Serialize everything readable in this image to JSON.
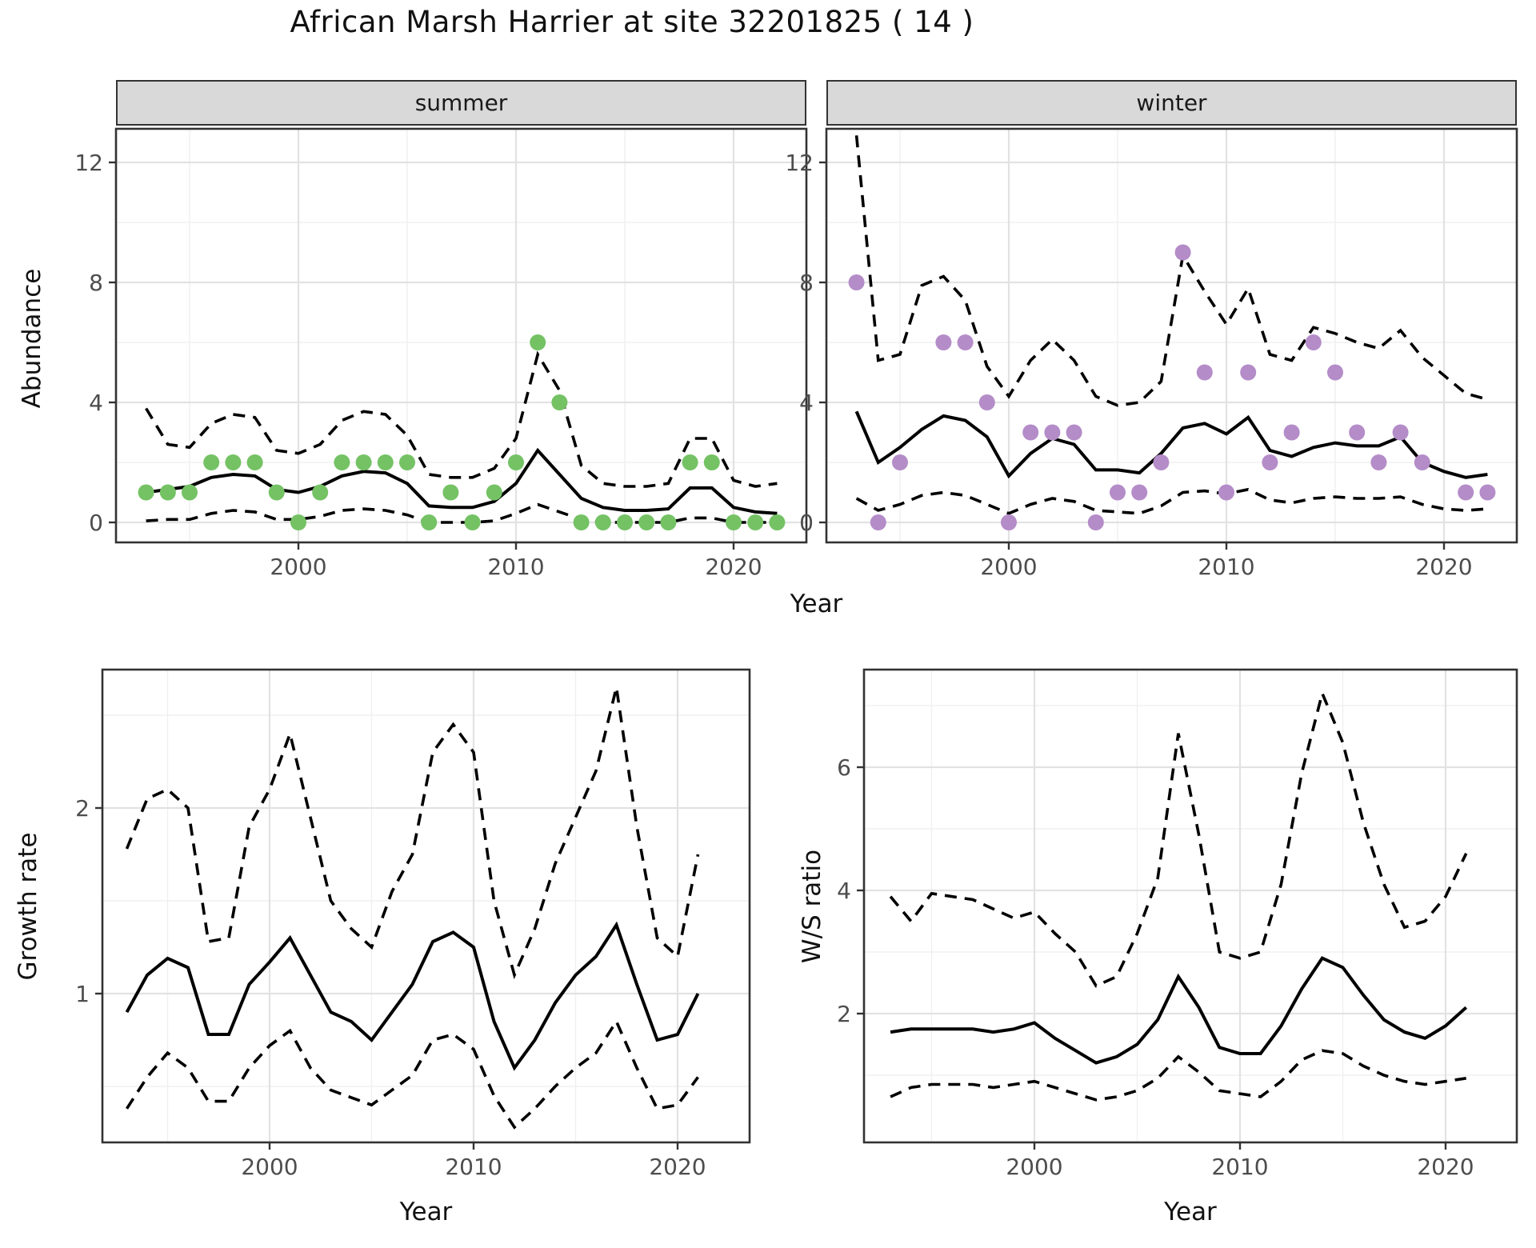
{
  "title": "African Marsh Harrier at site 32201825 ( 14 )",
  "axes": {
    "abundance_label": "Abundance",
    "year_label": "Year",
    "growth_label": "Growth rate",
    "ws_label": "W/S ratio"
  },
  "facets": {
    "summer": "summer",
    "winter": "winter"
  },
  "colors": {
    "summer_point": "#74c264",
    "winter_point": "#b48cc8",
    "mean_line": "#000000",
    "ci_line": "#000000",
    "strip_bg": "#d9d9d9",
    "grid_major": "#e2e2e2",
    "grid_minor": "#f0f0f0",
    "panel_border": "#333333",
    "tick_text": "#4d4d4d"
  },
  "chart_data": [
    {
      "key": "abundance_summer",
      "type": "line+scatter",
      "facet": "summer",
      "ylabel": "Abundance",
      "xlabel": "Year",
      "x_ticks": [
        2000,
        2010,
        2020
      ],
      "x_minor": [
        1995,
        2005,
        2015
      ],
      "y_ticks": [
        0,
        4,
        8,
        12
      ],
      "y_minor": [
        2,
        6,
        10
      ],
      "ylim": [
        -0.7,
        13.1
      ],
      "xlim": [
        1991.6,
        2023.3
      ],
      "years": [
        1993,
        1994,
        1995,
        1996,
        1997,
        1998,
        1999,
        2000,
        2001,
        2002,
        2003,
        2004,
        2005,
        2006,
        2007,
        2008,
        2009,
        2010,
        2011,
        2012,
        2013,
        2014,
        2015,
        2016,
        2017,
        2018,
        2019,
        2020,
        2021,
        2022
      ],
      "counts": [
        1,
        1,
        1,
        2,
        2,
        2,
        1,
        0,
        1,
        2,
        2,
        2,
        2,
        0,
        1,
        0,
        1,
        2,
        6,
        4,
        0,
        0,
        0,
        0,
        0,
        2,
        2,
        0,
        0,
        0
      ],
      "mean": [
        1.0,
        1.1,
        1.2,
        1.5,
        1.6,
        1.55,
        1.1,
        1.0,
        1.2,
        1.55,
        1.7,
        1.65,
        1.3,
        0.55,
        0.5,
        0.5,
        0.7,
        1.3,
        2.4,
        1.6,
        0.8,
        0.5,
        0.4,
        0.4,
        0.45,
        1.15,
        1.15,
        0.5,
        0.35,
        0.3
      ],
      "ci_lo": [
        0.05,
        0.1,
        0.1,
        0.3,
        0.4,
        0.35,
        0.1,
        0.1,
        0.2,
        0.4,
        0.45,
        0.4,
        0.25,
        0.0,
        0.0,
        0.0,
        0.05,
        0.3,
        0.6,
        0.35,
        0.1,
        0.0,
        0.0,
        0.0,
        0.0,
        0.15,
        0.15,
        0.0,
        0.0,
        0.0
      ],
      "ci_hi": [
        3.8,
        2.6,
        2.5,
        3.3,
        3.6,
        3.5,
        2.4,
        2.3,
        2.6,
        3.4,
        3.7,
        3.6,
        2.9,
        1.6,
        1.5,
        1.5,
        1.8,
        2.8,
        5.6,
        4.4,
        1.9,
        1.3,
        1.2,
        1.2,
        1.3,
        2.8,
        2.8,
        1.4,
        1.2,
        1.3
      ]
    },
    {
      "key": "abundance_winter",
      "type": "line+scatter",
      "facet": "winter",
      "ylabel": "Abundance",
      "xlabel": "Year",
      "x_ticks": [
        2000,
        2010,
        2020
      ],
      "x_minor": [
        1995,
        2005,
        2015
      ],
      "y_ticks": [
        0,
        4,
        8,
        12
      ],
      "y_minor": [
        2,
        6,
        10
      ],
      "ylim": [
        -0.7,
        13.1
      ],
      "xlim": [
        1991.6,
        2023.3
      ],
      "years": [
        1993,
        1994,
        1995,
        1996,
        1997,
        1998,
        1999,
        2000,
        2001,
        2002,
        2003,
        2004,
        2005,
        2006,
        2007,
        2008,
        2009,
        2010,
        2011,
        2012,
        2013,
        2014,
        2015,
        2016,
        2017,
        2018,
        2019,
        2020,
        2021,
        2022
      ],
      "counts": [
        8,
        0,
        2,
        null,
        6,
        6,
        4,
        0,
        3,
        3,
        3,
        0,
        1,
        1,
        2,
        9,
        5,
        1,
        5,
        2,
        3,
        6,
        5,
        3,
        2,
        3,
        2,
        null,
        1,
        1
      ],
      "mean": [
        3.7,
        2.0,
        2.5,
        3.1,
        3.55,
        3.4,
        2.85,
        1.55,
        2.3,
        2.8,
        2.6,
        1.75,
        1.75,
        1.65,
        2.3,
        3.15,
        3.3,
        2.95,
        3.5,
        2.4,
        2.2,
        2.5,
        2.65,
        2.55,
        2.55,
        2.85,
        2.0,
        1.7,
        1.5,
        1.6
      ],
      "ci_lo": [
        0.8,
        0.4,
        0.6,
        0.9,
        1.0,
        0.9,
        0.6,
        0.3,
        0.6,
        0.8,
        0.7,
        0.4,
        0.35,
        0.3,
        0.55,
        1.0,
        1.05,
        0.95,
        1.1,
        0.75,
        0.65,
        0.8,
        0.85,
        0.8,
        0.8,
        0.85,
        0.6,
        0.45,
        0.4,
        0.45
      ],
      "ci_hi": [
        12.9,
        5.4,
        5.6,
        7.9,
        8.2,
        7.4,
        5.2,
        4.2,
        5.4,
        6.1,
        5.4,
        4.2,
        3.9,
        4.0,
        4.7,
        8.9,
        7.7,
        6.6,
        7.8,
        5.6,
        5.4,
        6.5,
        6.3,
        6.0,
        5.8,
        6.4,
        5.5,
        4.9,
        4.3,
        4.1
      ]
    },
    {
      "key": "growth_rate",
      "type": "line",
      "ylabel": "Growth rate",
      "xlabel": "Year",
      "x_ticks": [
        2000,
        2010,
        2020
      ],
      "x_minor": [
        1995,
        2005,
        2015
      ],
      "y_ticks": [
        1,
        2
      ],
      "y_minor": [
        0.5,
        1.5,
        2.5
      ],
      "ylim": [
        0.2,
        2.75
      ],
      "xlim": [
        1991.8,
        2023.5
      ],
      "years": [
        1993,
        1994,
        1995,
        1996,
        1997,
        1998,
        1999,
        2000,
        2001,
        2002,
        2003,
        2004,
        2005,
        2006,
        2007,
        2008,
        2009,
        2010,
        2011,
        2012,
        2013,
        2014,
        2015,
        2016,
        2017,
        2018,
        2019,
        2020,
        2021
      ],
      "mean": [
        0.9,
        1.1,
        1.19,
        1.14,
        0.78,
        0.78,
        1.05,
        1.17,
        1.3,
        1.1,
        0.9,
        0.85,
        0.75,
        0.9,
        1.05,
        1.28,
        1.33,
        1.25,
        0.85,
        0.6,
        0.75,
        0.95,
        1.1,
        1.2,
        1.37,
        1.05,
        0.75,
        0.78,
        1.0
      ],
      "ci_lo": [
        0.38,
        0.55,
        0.68,
        0.6,
        0.42,
        0.42,
        0.6,
        0.72,
        0.8,
        0.6,
        0.48,
        0.44,
        0.4,
        0.48,
        0.56,
        0.75,
        0.78,
        0.7,
        0.45,
        0.28,
        0.38,
        0.5,
        0.6,
        0.68,
        0.85,
        0.6,
        0.38,
        0.4,
        0.55
      ],
      "ci_hi": [
        1.78,
        2.05,
        2.1,
        2.0,
        1.28,
        1.3,
        1.9,
        2.1,
        2.4,
        1.95,
        1.5,
        1.35,
        1.25,
        1.55,
        1.75,
        2.3,
        2.45,
        2.3,
        1.5,
        1.1,
        1.35,
        1.7,
        1.95,
        2.2,
        2.65,
        1.9,
        1.3,
        1.2,
        1.75
      ]
    },
    {
      "key": "ws_ratio",
      "type": "line",
      "ylabel": "W/S ratio",
      "xlabel": "Year",
      "x_ticks": [
        2000,
        2010,
        2020
      ],
      "x_minor": [
        1995,
        2005,
        2015
      ],
      "y_ticks": [
        2,
        4,
        6
      ],
      "y_minor": [
        1,
        3,
        5,
        7
      ],
      "ylim": [
        -0.1,
        7.6
      ],
      "xlim": [
        1991.7,
        2023.5
      ],
      "years": [
        1993,
        1994,
        1995,
        1996,
        1997,
        1998,
        1999,
        2000,
        2001,
        2002,
        2003,
        2004,
        2005,
        2006,
        2007,
        2008,
        2009,
        2010,
        2011,
        2012,
        2013,
        2014,
        2015,
        2016,
        2017,
        2018,
        2019,
        2020,
        2021
      ],
      "mean": [
        1.7,
        1.75,
        1.75,
        1.75,
        1.75,
        1.7,
        1.75,
        1.85,
        1.6,
        1.4,
        1.2,
        1.3,
        1.5,
        1.9,
        2.6,
        2.1,
        1.45,
        1.35,
        1.35,
        1.8,
        2.4,
        2.9,
        2.75,
        2.3,
        1.9,
        1.7,
        1.6,
        1.8,
        2.1
      ],
      "ci_lo": [
        0.65,
        0.8,
        0.85,
        0.85,
        0.85,
        0.8,
        0.85,
        0.9,
        0.8,
        0.7,
        0.6,
        0.65,
        0.75,
        0.95,
        1.3,
        1.05,
        0.75,
        0.7,
        0.65,
        0.9,
        1.25,
        1.4,
        1.35,
        1.15,
        1.0,
        0.9,
        0.85,
        0.9,
        0.95
      ],
      "ci_hi": [
        3.9,
        3.5,
        3.95,
        3.9,
        3.85,
        3.7,
        3.55,
        3.65,
        3.3,
        3.0,
        2.45,
        2.6,
        3.3,
        4.2,
        6.55,
        4.9,
        3.0,
        2.9,
        3.0,
        4.1,
        5.9,
        7.2,
        6.4,
        5.1,
        4.1,
        3.4,
        3.5,
        3.9,
        4.6
      ]
    }
  ]
}
